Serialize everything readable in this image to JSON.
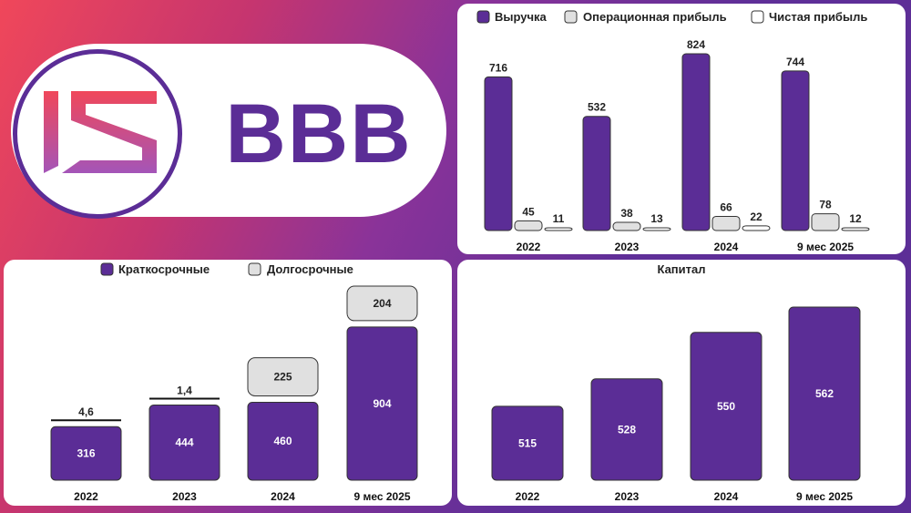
{
  "brand": {
    "ticker": "BBB",
    "purple": "#5b2d96",
    "gray": "#e0e0e0",
    "white": "#ffffff"
  },
  "chart_data": [
    {
      "id": "income",
      "type": "bar",
      "title": "",
      "categories": [
        "2022",
        "2023",
        "2024",
        "9 мес 2025"
      ],
      "series": [
        {
          "name": "Выручка",
          "values": [
            716,
            532,
            824,
            744
          ],
          "color": "#5b2d96"
        },
        {
          "name": "Операционная прибыль",
          "values": [
            45,
            38,
            66,
            78
          ],
          "color": "#e0e0e0"
        },
        {
          "name": "Чистая прибыль",
          "values": [
            11,
            13,
            22,
            12
          ],
          "color": "#ffffff"
        }
      ],
      "ylim": [
        0,
        824
      ],
      "legend": "top"
    },
    {
      "id": "debt",
      "type": "bar",
      "stacked": true,
      "title": "",
      "categories": [
        "2022",
        "2023",
        "2024",
        "9 мес 2025"
      ],
      "series": [
        {
          "name": "Краткосрочные",
          "values": [
            316,
            444,
            460,
            904
          ],
          "labels": [
            "316",
            "444",
            "460",
            "904"
          ],
          "color": "#5b2d96"
        },
        {
          "name": "Долгосрочные",
          "values": [
            4.6,
            1.4,
            225,
            204
          ],
          "labels": [
            "4,6",
            "1,4",
            "225",
            "204"
          ],
          "color": "#e0e0e0"
        }
      ],
      "ylim": [
        0,
        1108
      ],
      "legend": "top"
    },
    {
      "id": "capital",
      "type": "bar",
      "title": "Капитал",
      "categories": [
        "2022",
        "2023",
        "2024",
        "9 мес 2025"
      ],
      "series": [
        {
          "name": "Капитал",
          "values": [
            515,
            528,
            550,
            562
          ],
          "color": "#5b2d96"
        }
      ],
      "ylim": [
        480,
        565
      ]
    }
  ]
}
